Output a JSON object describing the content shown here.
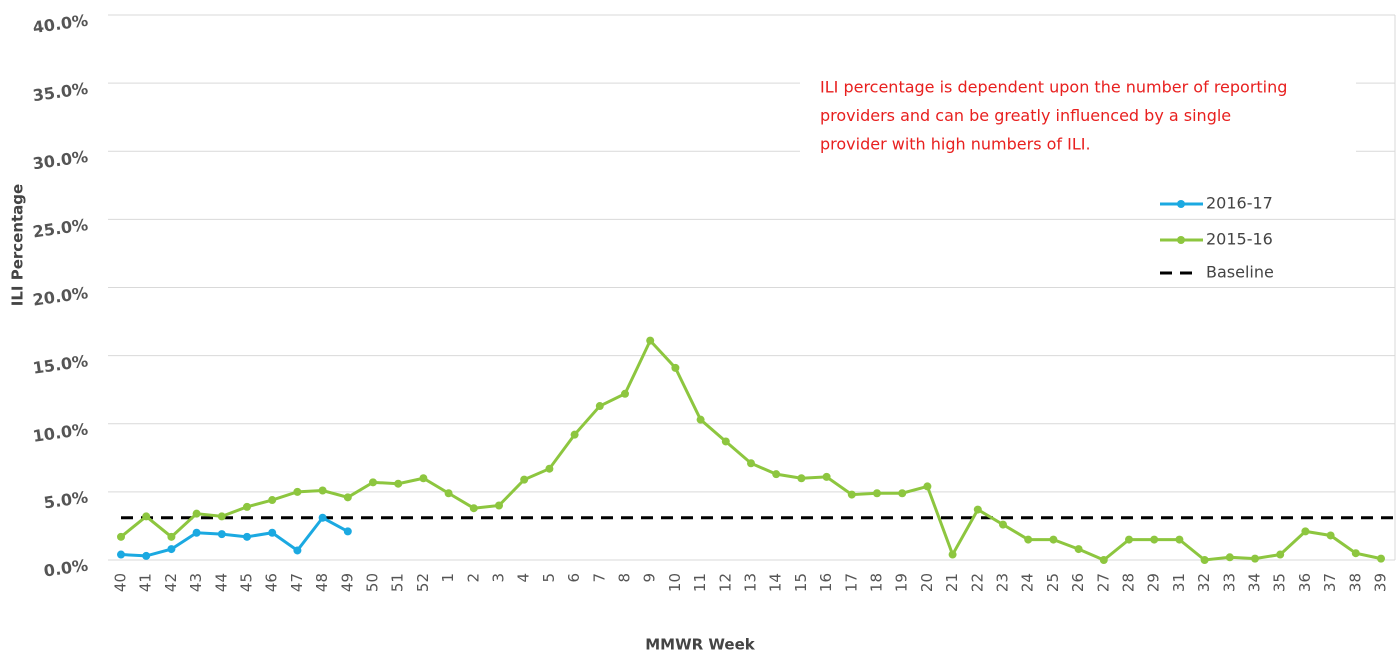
{
  "chart_data": {
    "type": "line",
    "x_label": "MMWR Week",
    "y_label": "ILI Percentage",
    "annotation": [
      "ILI percentage is dependent upon the number of reporting",
      "providers and can be greatly influenced by a single",
      "provider with high numbers of ILI."
    ],
    "categories": [
      "40",
      "41",
      "42",
      "43",
      "44",
      "45",
      "46",
      "47",
      "48",
      "49",
      "50",
      "51",
      "52",
      "1",
      "2",
      "3",
      "4",
      "5",
      "6",
      "7",
      "8",
      "9",
      "10",
      "11",
      "12",
      "13",
      "14",
      "15",
      "16",
      "17",
      "18",
      "19",
      "20",
      "21",
      "22",
      "23",
      "24",
      "25",
      "26",
      "27",
      "28",
      "29",
      "31",
      "32",
      "33",
      "34",
      "35",
      "36",
      "37",
      "38",
      "39"
    ],
    "series": [
      {
        "name": "2016-17",
        "color": "#1ba9e1",
        "values": [
          0.4,
          0.3,
          0.8,
          2.0,
          1.9,
          1.7,
          2.0,
          0.7,
          3.1,
          2.1,
          null,
          null,
          null,
          null,
          null,
          null,
          null,
          null,
          null,
          null,
          null,
          null,
          null,
          null,
          null,
          null,
          null,
          null,
          null,
          null,
          null,
          null,
          null,
          null,
          null,
          null,
          null,
          null,
          null,
          null,
          null,
          null,
          null,
          null,
          null,
          null,
          null,
          null,
          null,
          null,
          null
        ]
      },
      {
        "name": "2015-16",
        "color": "#8dc63f",
        "values": [
          1.7,
          3.2,
          1.7,
          3.4,
          3.2,
          3.9,
          4.4,
          5.0,
          5.1,
          4.6,
          5.7,
          5.6,
          6.0,
          4.9,
          3.8,
          4.0,
          5.9,
          6.7,
          9.2,
          11.3,
          12.2,
          16.1,
          14.1,
          10.3,
          8.7,
          7.1,
          6.3,
          6.0,
          6.1,
          4.8,
          4.9,
          4.9,
          5.4,
          0.4,
          3.7,
          2.6,
          1.5,
          1.5,
          0.8,
          0.0,
          1.5,
          1.5,
          1.5,
          0.0,
          0.2,
          0.1,
          0.4,
          2.1,
          1.8,
          0.5,
          0.1
        ]
      }
    ],
    "baseline": {
      "name": "Baseline",
      "color": "#000000",
      "value": 3.1
    },
    "ylim": [
      0,
      40
    ],
    "yticks": [
      {
        "value": 0,
        "label": "0.0%"
      },
      {
        "value": 5,
        "label": "5.0%"
      },
      {
        "value": 10,
        "label": "10.0%"
      },
      {
        "value": 15,
        "label": "15.0%"
      },
      {
        "value": 20,
        "label": "20.0%"
      },
      {
        "value": 25,
        "label": "25.0%"
      },
      {
        "value": 30,
        "label": "30.0%"
      },
      {
        "value": 35,
        "label": "35.0%"
      },
      {
        "value": 40,
        "label": "40.0%"
      }
    ],
    "grid": true
  }
}
